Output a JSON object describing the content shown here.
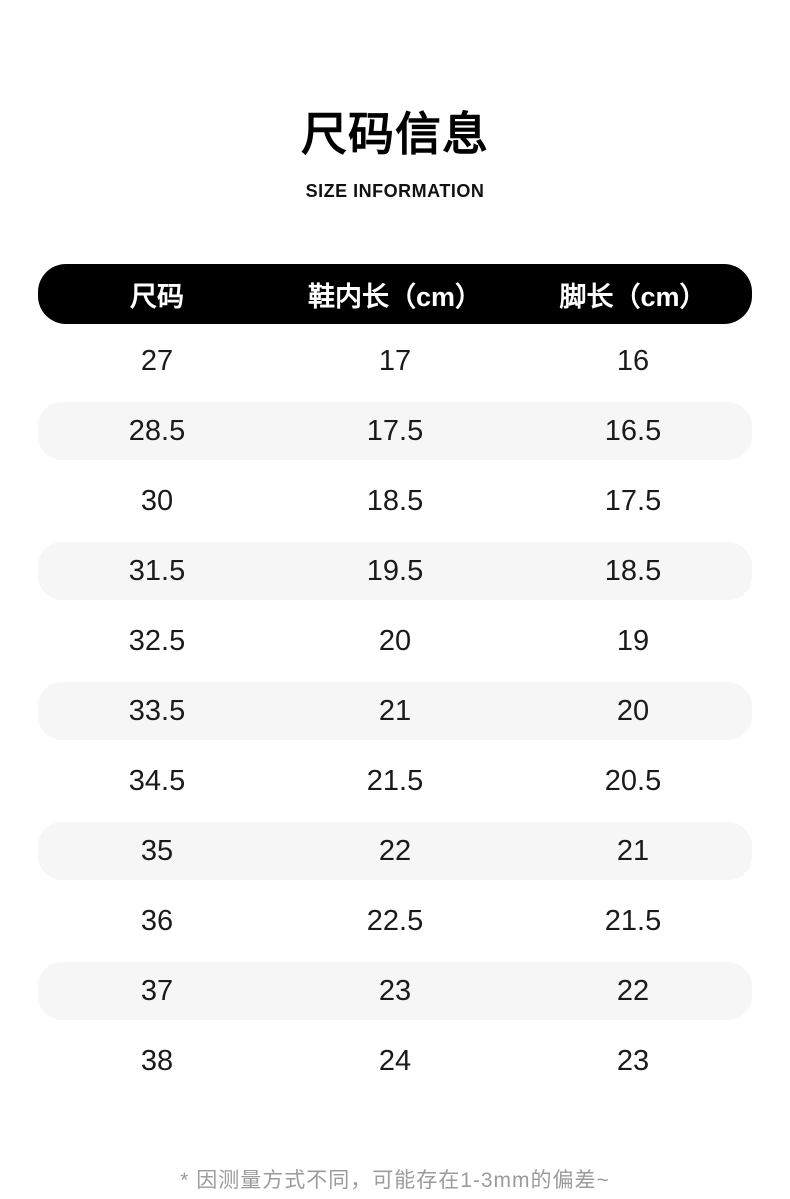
{
  "header": {
    "title": "尺码信息",
    "subtitle": "SIZE INFORMATION"
  },
  "table": {
    "columns": [
      "尺码",
      "鞋内长（cm）",
      "脚长（cm）"
    ],
    "rows": [
      [
        "27",
        "17",
        "16"
      ],
      [
        "28.5",
        "17.5",
        "16.5"
      ],
      [
        "30",
        "18.5",
        "17.5"
      ],
      [
        "31.5",
        "19.5",
        "18.5"
      ],
      [
        "32.5",
        "20",
        "19"
      ],
      [
        "33.5",
        "21",
        "20"
      ],
      [
        "34.5",
        "21.5",
        "20.5"
      ],
      [
        "35",
        "22",
        "21"
      ],
      [
        "36",
        "22.5",
        "21.5"
      ],
      [
        "37",
        "23",
        "22"
      ],
      [
        "38",
        "24",
        "23"
      ]
    ]
  },
  "footnote": "* 因测量方式不同，可能存在1-3mm的偏差~",
  "colors": {
    "header_bar_bg": "#000000",
    "header_bar_text": "#ffffff",
    "row_alt_bg": "#f6f6f6",
    "body_text": "#1a1a1a",
    "footnote_text": "#9b9b9b"
  }
}
